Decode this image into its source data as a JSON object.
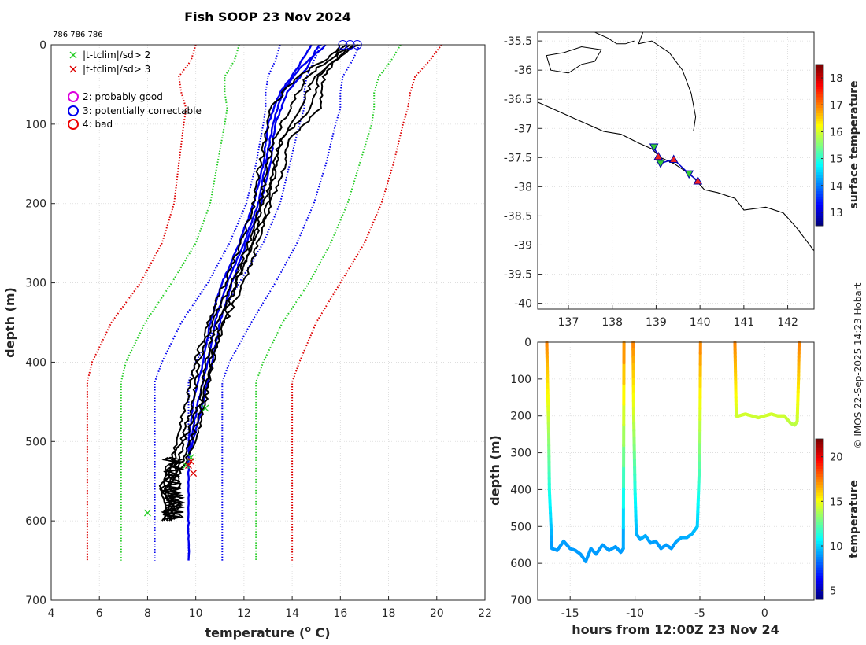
{
  "chart_data": [
    {
      "type": "line",
      "title": "Fish SOOP 23 Nov 2024",
      "header_ids": "786 786 786",
      "xlabel": "temperature (",
      "xlabel_sup": "o",
      "xlabel_end": " C)",
      "ylabel": "depth (m)",
      "xlim": [
        4,
        22
      ],
      "ylim": [
        0,
        700
      ],
      "xticks": [
        4,
        6,
        8,
        10,
        12,
        14,
        16,
        18,
        20,
        22
      ],
      "yticks": [
        0,
        100,
        200,
        300,
        400,
        500,
        600,
        700
      ],
      "legend": [
        {
          "marker": "x",
          "color": "#22cc22",
          "label": "|t-tclim|/sd> 2"
        },
        {
          "marker": "x",
          "color": "#dd0000",
          "label": "|t-tclim|/sd> 3"
        },
        {
          "marker": "o",
          "color": "#dd00dd",
          "label": "2: probably good"
        },
        {
          "marker": "o",
          "color": "#0000ee",
          "label": "3: potentially correctable"
        },
        {
          "marker": "o",
          "color": "#ee0000",
          "label": "4: bad"
        }
      ],
      "climatology": [
        {
          "name": "sd3-left",
          "color": "#dd0000",
          "depth": [
            0,
            20,
            40,
            60,
            80,
            100,
            150,
            200,
            250,
            300,
            350,
            400,
            425,
            650
          ],
          "temp": [
            10.0,
            9.8,
            9.3,
            9.4,
            9.6,
            9.5,
            9.3,
            9.1,
            8.6,
            7.7,
            6.5,
            5.7,
            5.5,
            5.5
          ]
        },
        {
          "name": "sd2-left",
          "color": "#22cc22",
          "depth": [
            0,
            20,
            40,
            60,
            80,
            100,
            150,
            200,
            250,
            300,
            350,
            400,
            425,
            650
          ],
          "temp": [
            11.8,
            11.6,
            11.2,
            11.2,
            11.3,
            11.2,
            10.9,
            10.6,
            10.0,
            9.0,
            7.9,
            7.1,
            6.9,
            6.9
          ]
        },
        {
          "name": "sd1-left",
          "color": "#0000ee",
          "depth": [
            0,
            20,
            40,
            60,
            80,
            100,
            150,
            200,
            250,
            300,
            350,
            400,
            425,
            650
          ],
          "temp": [
            13.5,
            13.3,
            13.0,
            12.9,
            12.9,
            12.8,
            12.5,
            12.1,
            11.4,
            10.5,
            9.4,
            8.6,
            8.3,
            8.3
          ]
        },
        {
          "name": "mean",
          "color": "#0000ee",
          "depth": [
            0,
            20,
            40,
            60,
            80,
            100,
            150,
            200,
            250,
            300,
            350,
            400,
            425,
            650
          ],
          "temp": [
            15.2,
            14.9,
            14.6,
            14.5,
            14.5,
            14.3,
            13.9,
            13.5,
            12.8,
            11.8,
            10.9,
            10.0,
            9.7,
            9.7
          ]
        },
        {
          "name": "sd1-right",
          "color": "#0000ee",
          "depth": [
            0,
            20,
            40,
            60,
            80,
            100,
            150,
            200,
            250,
            300,
            350,
            400,
            425,
            650
          ],
          "temp": [
            16.8,
            16.5,
            16.1,
            16.0,
            16.0,
            15.8,
            15.4,
            14.9,
            14.2,
            13.3,
            12.3,
            11.4,
            11.1,
            11.1
          ]
        },
        {
          "name": "sd2-right",
          "color": "#22cc22",
          "depth": [
            0,
            20,
            40,
            60,
            80,
            100,
            150,
            200,
            250,
            300,
            350,
            400,
            425,
            650
          ],
          "temp": [
            18.5,
            18.1,
            17.6,
            17.4,
            17.4,
            17.3,
            16.8,
            16.3,
            15.6,
            14.7,
            13.6,
            12.8,
            12.5,
            12.5
          ]
        },
        {
          "name": "sd3-right",
          "color": "#dd0000",
          "depth": [
            0,
            20,
            40,
            60,
            80,
            100,
            150,
            200,
            250,
            300,
            350,
            400,
            425,
            650
          ],
          "temp": [
            20.2,
            19.7,
            19.1,
            18.9,
            18.8,
            18.6,
            18.2,
            17.7,
            17.0,
            16.0,
            15.0,
            14.3,
            14.0,
            14.0
          ]
        }
      ],
      "profiles": [
        {
          "name": "blue-1",
          "color": "#0000ee",
          "depth": [
            0,
            30,
            60,
            100,
            150,
            200,
            250,
            300,
            350,
            400,
            450,
            500,
            520
          ],
          "temp": [
            15.1,
            14.6,
            13.8,
            13.3,
            13.1,
            12.7,
            12.1,
            11.5,
            11.0,
            10.7,
            10.3,
            9.9,
            9.7
          ]
        },
        {
          "name": "blue-2",
          "color": "#0000ee",
          "depth": [
            0,
            30,
            60,
            100,
            150,
            200,
            250,
            300,
            350,
            400,
            450,
            500,
            520
          ],
          "temp": [
            15.4,
            14.3,
            13.6,
            13.2,
            12.9,
            12.6,
            12.0,
            11.3,
            10.8,
            10.5,
            10.1,
            9.8,
            9.7
          ]
        },
        {
          "name": "blue-3",
          "color": "#0000ee",
          "depth": [
            0,
            30,
            60,
            100,
            150,
            200,
            250,
            300,
            350,
            400,
            450,
            500,
            520
          ],
          "temp": [
            14.8,
            14.2,
            13.5,
            13.0,
            12.8,
            12.4,
            11.8,
            11.1,
            10.6,
            10.3,
            9.9,
            9.7,
            9.7
          ]
        },
        {
          "name": "blue-4",
          "color": "#0000ee",
          "depth": [
            520,
            650
          ],
          "temp": [
            9.7,
            9.7
          ]
        },
        {
          "name": "black-1",
          "color": "#000000",
          "depth": [
            0,
            10,
            40,
            80,
            120,
            160,
            200,
            250,
            300,
            350,
            400,
            450,
            500,
            540,
            560,
            580,
            600
          ],
          "temp": [
            16.2,
            15.8,
            14.2,
            13.1,
            12.9,
            12.6,
            12.4,
            11.9,
            11.2,
            10.5,
            10.0,
            9.6,
            9.2,
            8.9,
            8.5,
            8.8,
            8.6
          ]
        },
        {
          "name": "black-2",
          "color": "#000000",
          "depth": [
            0,
            10,
            40,
            80,
            120,
            160,
            200,
            250,
            300,
            350,
            400,
            450,
            500,
            540,
            560,
            580,
            600
          ],
          "temp": [
            16.6,
            16.1,
            15.1,
            14.8,
            13.5,
            13.2,
            13.0,
            12.4,
            11.7,
            10.9,
            10.4,
            10.2,
            9.5,
            9.1,
            8.7,
            9.0,
            8.8
          ]
        },
        {
          "name": "black-3",
          "color": "#000000",
          "depth": [
            0,
            10,
            40,
            80,
            120,
            160,
            200,
            250,
            300,
            350,
            400,
            450,
            500,
            540,
            560,
            580,
            600
          ],
          "temp": [
            16.0,
            15.9,
            14.6,
            13.9,
            13.2,
            12.9,
            12.7,
            12.2,
            11.5,
            10.7,
            10.1,
            9.9,
            9.4,
            8.8,
            8.6,
            8.9,
            8.7
          ]
        },
        {
          "name": "black-4",
          "color": "#000000",
          "depth": [
            0,
            10,
            40,
            80,
            120,
            160,
            200,
            250,
            300,
            350,
            400,
            450,
            500,
            540,
            560,
            580,
            600
          ],
          "temp": [
            16.4,
            16.0,
            15.3,
            15.2,
            13.9,
            13.6,
            13.1,
            12.6,
            12.0,
            11.2,
            10.7,
            10.4,
            10.0,
            9.3,
            8.9,
            9.1,
            9.0
          ]
        },
        {
          "name": "black-5",
          "color": "#000000",
          "depth": [
            0,
            10,
            40,
            80,
            120,
            160,
            200,
            250,
            300,
            350,
            400,
            450,
            500,
            540,
            560,
            580,
            600
          ],
          "temp": [
            16.7,
            16.2,
            14.9,
            14.4,
            13.6,
            13.3,
            12.8,
            12.3,
            11.7,
            11.1,
            10.6,
            10.3,
            9.8,
            9.2,
            8.8,
            9.0,
            8.9
          ]
        }
      ],
      "qc_circles": [
        16.1,
        16.4,
        16.7
      ],
      "flags_green_x": [
        [
          9.8,
          520
        ],
        [
          10.4,
          458
        ],
        [
          9.6,
          530
        ],
        [
          8.0,
          590
        ]
      ],
      "flags_red_x": [
        [
          9.8,
          525
        ],
        [
          9.9,
          540
        ],
        [
          9.7,
          530
        ]
      ]
    },
    {
      "type": "scatter",
      "subtitle": "map",
      "xlim": [
        136.3,
        142.6
      ],
      "ylim": [
        -40.1,
        -35.35
      ],
      "xticks": [
        137,
        138,
        139,
        140,
        141,
        142
      ],
      "yticks": [
        -35.5,
        -36,
        -36.5,
        -37,
        -37.5,
        -38,
        -38.5,
        -39,
        -39.5,
        -40
      ],
      "ytick_labels": [
        "-35.5",
        "-36",
        "-36.5",
        "-37",
        "-37.5",
        "-38",
        "-38.5",
        "-39",
        "-39.5",
        "-40"
      ],
      "stations_down": [
        [
          138.95,
          -37.32
        ],
        [
          139.1,
          -37.6
        ],
        [
          139.75,
          -37.78
        ]
      ],
      "stations_up": [
        [
          139.05,
          -37.48
        ],
        [
          139.4,
          -37.53
        ],
        [
          139.95,
          -37.9
        ]
      ],
      "colorbar": {
        "label": "surface temperature",
        "range": [
          12.5,
          18.5
        ],
        "ticks": [
          13,
          14,
          15,
          16,
          17,
          18
        ]
      }
    },
    {
      "type": "scatter",
      "subtitle": "depth-time",
      "xlabel": "hours from 12:00Z 23 Nov 24",
      "ylabel": "depth (m)",
      "xlim": [
        -17.5,
        3.8
      ],
      "ylim": [
        0,
        700
      ],
      "xticks": [
        -15,
        -10,
        -5,
        0
      ],
      "yticks": [
        0,
        100,
        200,
        300,
        400,
        500,
        600,
        700
      ],
      "segments": [
        {
          "t": [
            -16.8,
            -16.75,
            -16.65,
            -16.6,
            -16.4,
            -16.0,
            -15.5,
            -15.0,
            -14.6,
            -14.2,
            -13.8,
            -13.4,
            -13.0,
            -12.5,
            -12.0,
            -11.5,
            -11.1,
            -10.9,
            -10.85
          ],
          "d": [
            0,
            100,
            250,
            400,
            560,
            565,
            540,
            560,
            565,
            575,
            595,
            560,
            575,
            550,
            565,
            555,
            570,
            560,
            0
          ]
        },
        {
          "t": [
            -10.15,
            -10.1,
            -10.0,
            -9.9,
            -9.6,
            -9.2,
            -8.8,
            -8.4,
            -8.0,
            -7.6,
            -7.2,
            -6.8,
            -6.4,
            -6.0,
            -5.6,
            -5.2,
            -5.0,
            -4.95
          ],
          "d": [
            0,
            200,
            400,
            520,
            535,
            525,
            545,
            540,
            560,
            550,
            560,
            540,
            530,
            530,
            520,
            500,
            300,
            0
          ]
        },
        {
          "t": [
            -2.3,
            -2.25,
            -2.2,
            -2.0,
            -1.5,
            -1.0,
            -0.5,
            0.0,
            0.5,
            1.0,
            1.5,
            2.0,
            2.3,
            2.5,
            2.6,
            2.65
          ],
          "d": [
            0,
            100,
            200,
            200,
            195,
            200,
            205,
            200,
            195,
            200,
            200,
            220,
            225,
            215,
            100,
            0
          ]
        }
      ],
      "colorbar": {
        "label": "temperature",
        "range": [
          4,
          22
        ],
        "ticks": [
          5,
          10,
          15,
          20
        ]
      }
    }
  ],
  "credit": "© IMOS 22-Sep-2025 14:23 Hobart"
}
